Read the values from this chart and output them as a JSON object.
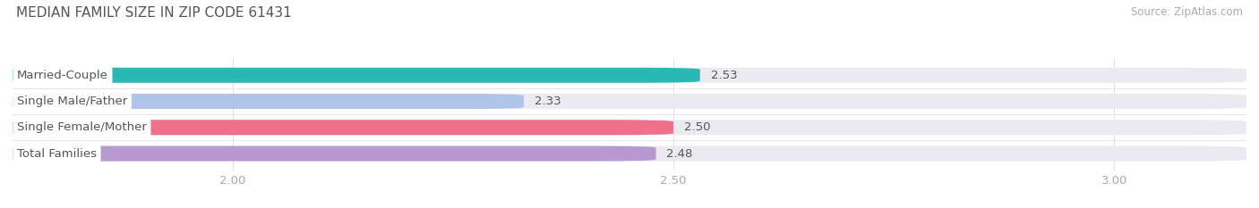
{
  "title": "MEDIAN FAMILY SIZE IN ZIP CODE 61431",
  "source": "Source: ZipAtlas.com",
  "categories": [
    "Married-Couple",
    "Single Male/Father",
    "Single Female/Mother",
    "Total Families"
  ],
  "values": [
    2.53,
    2.33,
    2.5,
    2.48
  ],
  "bar_colors": [
    "#2ab8b4",
    "#afc4e8",
    "#f0708a",
    "#b898d0"
  ],
  "bar_bg_color": "#eaeaf0",
  "xlim_min": 1.75,
  "xlim_max": 3.15,
  "data_min": 1.75,
  "xticks": [
    2.0,
    2.5,
    3.0
  ],
  "xtick_labels": [
    "2.00",
    "2.50",
    "3.00"
  ],
  "bar_height": 0.58,
  "label_fontsize": 9.5,
  "value_fontsize": 9.5,
  "title_fontsize": 11,
  "source_fontsize": 8.5,
  "background_color": "#ffffff",
  "label_bg_color": "#ffffff",
  "label_text_color": "#555555",
  "value_color": "#555555",
  "tick_color": "#aaaaaa",
  "grid_color": "#e0e0e8",
  "title_color": "#555555"
}
